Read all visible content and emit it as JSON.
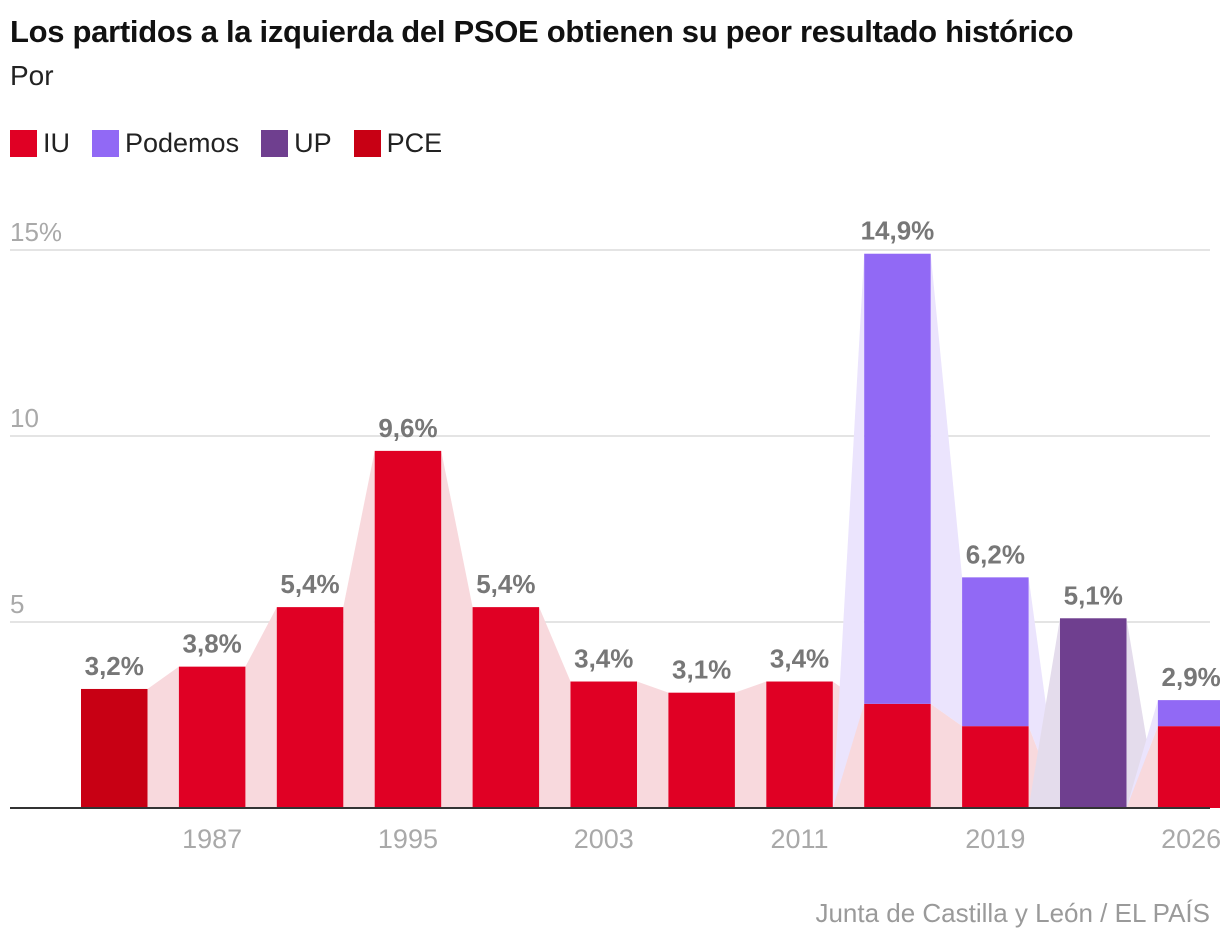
{
  "title": "Los partidos a la izquierda del PSOE obtienen su peor resultado histórico",
  "subtitle": "Por",
  "source": "Junta de Castilla y León / EL PAÍS",
  "legend": [
    {
      "label": "IU",
      "color": "#e00024"
    },
    {
      "label": "Podemos",
      "color": "#9169f5"
    },
    {
      "label": "UP",
      "color": "#6f3f8f"
    },
    {
      "label": "PCE",
      "color": "#c80014"
    }
  ],
  "chart_data": {
    "type": "bar",
    "stacked": true,
    "title": "Los partidos a la izquierda del PSOE obtienen su peor resultado histórico",
    "xlabel": "",
    "ylabel": "",
    "ylim": [
      0,
      15
    ],
    "yticks": [
      {
        "value": 5,
        "label": "5"
      },
      {
        "value": 10,
        "label": "10"
      },
      {
        "value": 15,
        "label": "15%"
      }
    ],
    "xticks": [
      {
        "index": 1,
        "label": "1987"
      },
      {
        "index": 3,
        "label": "1995"
      },
      {
        "index": 5,
        "label": "2003"
      },
      {
        "index": 7,
        "label": "2011"
      },
      {
        "index": 9,
        "label": "2019"
      },
      {
        "index": 11,
        "label": "2026"
      }
    ],
    "bars": [
      {
        "total_label": "3,2%",
        "segments": [
          {
            "series": "PCE",
            "value": 3.2
          }
        ]
      },
      {
        "total_label": "3,8%",
        "segments": [
          {
            "series": "IU",
            "value": 3.8
          }
        ]
      },
      {
        "total_label": "5,4%",
        "segments": [
          {
            "series": "IU",
            "value": 5.4
          }
        ]
      },
      {
        "total_label": "9,6%",
        "segments": [
          {
            "series": "IU",
            "value": 9.6
          }
        ]
      },
      {
        "total_label": "5,4%",
        "segments": [
          {
            "series": "IU",
            "value": 5.4
          }
        ]
      },
      {
        "total_label": "3,4%",
        "segments": [
          {
            "series": "IU",
            "value": 3.4
          }
        ]
      },
      {
        "total_label": "3,1%",
        "segments": [
          {
            "series": "IU",
            "value": 3.1
          }
        ]
      },
      {
        "total_label": "3,4%",
        "segments": [
          {
            "series": "IU",
            "value": 3.4
          }
        ]
      },
      {
        "total_label": "14,9%",
        "segments": [
          {
            "series": "IU",
            "value": 2.8
          },
          {
            "series": "Podemos",
            "value": 12.1
          }
        ]
      },
      {
        "total_label": "6,2%",
        "segments": [
          {
            "series": "IU",
            "value": 2.2
          },
          {
            "series": "Podemos",
            "value": 4.0
          }
        ]
      },
      {
        "total_label": "5,1%",
        "segments": [
          {
            "series": "UP",
            "value": 5.1
          }
        ]
      },
      {
        "total_label": "2,9%",
        "segments": [
          {
            "series": "IU",
            "value": 2.2
          },
          {
            "series": "Podemos",
            "value": 0.7
          }
        ]
      }
    ]
  }
}
